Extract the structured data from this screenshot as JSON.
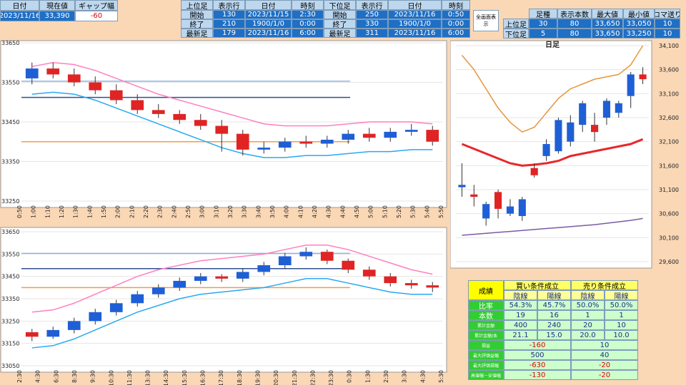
{
  "quote": {
    "headers": [
      "日付",
      "現在値",
      "ギャップ幅"
    ],
    "values": [
      "2023/11/16",
      "33,390",
      "-60"
    ]
  },
  "upper": {
    "headers": [
      "上位足",
      "表示行",
      "日付",
      "時刻"
    ],
    "rows": [
      [
        "開始",
        "130",
        "2023/11/15",
        "2:30"
      ],
      [
        "終了",
        "210",
        "1900/1/0",
        "0:00"
      ],
      [
        "最新足",
        "179",
        "2023/11/16",
        "6:00"
      ]
    ]
  },
  "lower": {
    "headers": [
      "下位足",
      "表示行",
      "日付",
      "時刻"
    ],
    "rows": [
      [
        "開始",
        "250",
        "2023/11/16",
        "0:50"
      ],
      [
        "終了",
        "330",
        "1900/1/0",
        "0:00"
      ],
      [
        "最新足",
        "311",
        "2023/11/16",
        "6:00"
      ]
    ]
  },
  "button": "全画面表示",
  "settings": {
    "headers": [
      "足種",
      "表示本数",
      "最大値",
      "最小値",
      "コマ送り"
    ],
    "rows": [
      [
        "上位足",
        "30",
        "80",
        "33,650",
        "33,050",
        "10"
      ],
      [
        "下位足",
        "5",
        "80",
        "33,650",
        "33,250",
        "10"
      ]
    ]
  },
  "stats": {
    "title": "成績",
    "groups": [
      "買い条件成立",
      "売り条件成立"
    ],
    "subheader": [
      "陰線",
      "陽線",
      "陰線",
      "陽線"
    ],
    "rows": [
      [
        "比率",
        "54.3%",
        "45.7%",
        "50.0%",
        "50.0%"
      ],
      [
        "本数",
        "19",
        "16",
        "1",
        "1"
      ],
      [
        "累計金額",
        "400",
        "240",
        "20",
        "10"
      ],
      [
        "累計金額/本",
        "21.1",
        "15.0",
        "20.0",
        "10.0"
      ],
      [
        "損益",
        "-160",
        "10"
      ],
      [
        "最大評価益幅",
        "500",
        "40"
      ],
      [
        "最大評価損幅",
        "-630",
        "-20"
      ],
      [
        "高値幅－安値幅",
        "-130",
        "-20"
      ]
    ]
  },
  "chart_data": [
    {
      "type": "candlestick",
      "ylim": [
        33250,
        33650
      ],
      "yticks": [
        33650,
        33550,
        33450,
        33350,
        33250
      ],
      "x_labels": [
        "0:50",
        "1:00",
        "1:10",
        "1:20",
        "1:30",
        "1:40",
        "1:50",
        "2:00",
        "2:10",
        "2:20",
        "2:30",
        "2:40",
        "2:50",
        "3:00",
        "3:10",
        "3:20",
        "3:30",
        "3:40",
        "3:50",
        "4:00",
        "4:10",
        "4:20",
        "4:30",
        "4:40",
        "4:50",
        "5:00",
        "5:10",
        "5:20",
        "5:30",
        "5:40",
        "5:50"
      ],
      "open": [
        33560,
        33585,
        33570,
        33550,
        33530,
        33505,
        33480,
        33470,
        33455,
        33440,
        33420,
        33380,
        33385,
        33400,
        33395,
        33405,
        33420,
        33410,
        33425,
        33430
      ],
      "close": [
        33585,
        33570,
        33550,
        33530,
        33505,
        33480,
        33470,
        33455,
        33440,
        33420,
        33380,
        33385,
        33400,
        33395,
        33405,
        33420,
        33410,
        33425,
        33430,
        33400
      ],
      "high": [
        33600,
        33600,
        33585,
        33565,
        33545,
        33520,
        33495,
        33480,
        33470,
        33455,
        33430,
        33400,
        33410,
        33415,
        33415,
        33430,
        33435,
        33435,
        33445,
        33440
      ],
      "low": [
        33545,
        33560,
        33540,
        33520,
        33495,
        33470,
        33460,
        33445,
        33430,
        33375,
        33365,
        33370,
        33375,
        33385,
        33385,
        33395,
        33400,
        33400,
        33415,
        33390
      ],
      "hlines": [
        {
          "value": 33553,
          "color": "#8fb4e3"
        },
        {
          "value": 33512,
          "color": "#2f4f8f"
        },
        {
          "value": 33400,
          "color": "#f39c4a"
        }
      ],
      "lines": [
        {
          "color": "#ff7fbf",
          "values": [
            33590,
            33600,
            33595,
            33580,
            33560,
            33540,
            33520,
            33505,
            33490,
            33475,
            33460,
            33445,
            33440,
            33440,
            33440,
            33445,
            33450,
            33450,
            33450,
            33445
          ]
        },
        {
          "color": "#29a9f0",
          "values": [
            33520,
            33525,
            33520,
            33505,
            33485,
            33465,
            33445,
            33425,
            33405,
            33385,
            33370,
            33360,
            33360,
            33365,
            33365,
            33370,
            33375,
            33375,
            33380,
            33380
          ]
        }
      ]
    },
    {
      "type": "candlestick",
      "ylim": [
        33050,
        33650
      ],
      "yticks": [
        33650,
        33550,
        33450,
        33350,
        33250,
        33150,
        33050
      ],
      "x_labels": [
        "2:30",
        "4:30",
        "6:30",
        "8:30",
        "9:30",
        "10:30",
        "11:30",
        "13:30",
        "14:30",
        "15:30",
        "16:30",
        "17:30",
        "18:30",
        "19:30",
        "20:30",
        "21:30",
        "22:30",
        "23:30",
        "0:30",
        "1:30",
        "2:30",
        "3:30",
        "4:30",
        "5:30"
      ],
      "open": [
        33200,
        33180,
        33210,
        33250,
        33290,
        33330,
        33370,
        33400,
        33430,
        33450,
        33440,
        33470,
        33500,
        33540,
        33560,
        33520,
        33480,
        33450,
        33420,
        33410
      ],
      "close": [
        33180,
        33210,
        33250,
        33290,
        33330,
        33370,
        33400,
        33430,
        33450,
        33440,
        33470,
        33500,
        33540,
        33560,
        33520,
        33480,
        33450,
        33420,
        33410,
        33400
      ],
      "high": [
        33215,
        33225,
        33265,
        33305,
        33345,
        33385,
        33415,
        33445,
        33465,
        33460,
        33485,
        33515,
        33555,
        33580,
        33570,
        33530,
        33495,
        33465,
        33435,
        33425
      ],
      "low": [
        33160,
        33170,
        33195,
        33235,
        33275,
        33315,
        33355,
        33385,
        33415,
        33425,
        33425,
        33455,
        33485,
        33525,
        33505,
        33465,
        33435,
        33405,
        33395,
        33380
      ],
      "hlines": [
        {
          "value": 33553,
          "color": "#8fb4e3"
        },
        {
          "value": 33485,
          "color": "#2f4f8f"
        },
        {
          "value": 33400,
          "color": "#f39c4a"
        }
      ],
      "lines": [
        {
          "color": "#ff7fbf",
          "values": [
            33290,
            33300,
            33330,
            33370,
            33410,
            33450,
            33480,
            33500,
            33520,
            33530,
            33540,
            33550,
            33570,
            33590,
            33590,
            33570,
            33540,
            33510,
            33480,
            33460
          ]
        },
        {
          "color": "#29a9f0",
          "values": [
            33130,
            33140,
            33170,
            33210,
            33250,
            33290,
            33320,
            33350,
            33370,
            33380,
            33390,
            33400,
            33420,
            33440,
            33440,
            33420,
            33400,
            33380,
            33370,
            33370
          ]
        }
      ]
    },
    {
      "type": "candlestick",
      "title": "日足",
      "ylim": [
        29600,
        34100
      ],
      "yticks": [
        {
          "value": 34100,
          "label": "34,100"
        },
        {
          "value": 33600,
          "label": "33,600"
        },
        {
          "value": 33100,
          "label": "33,100"
        },
        {
          "value": 32600,
          "label": "32,600"
        },
        {
          "value": 32100,
          "label": "32,100"
        },
        {
          "value": 31600,
          "label": "31,600"
        },
        {
          "value": 31100,
          "label": "31,100"
        },
        {
          "value": 30600,
          "label": "30,600"
        },
        {
          "value": 30100,
          "label": "30,100"
        },
        {
          "value": 29600,
          "label": "29,600"
        }
      ],
      "open": [
        31150,
        31000,
        30500,
        31050,
        30600,
        30550,
        31550,
        31800,
        31900,
        32100,
        32450,
        32450,
        32600,
        32700,
        33050,
        33500
      ],
      "close": [
        31200,
        30950,
        30800,
        30700,
        30750,
        30900,
        31400,
        32050,
        32550,
        32500,
        32900,
        32300,
        32950,
        32900,
        33500,
        33400
      ],
      "high": [
        31650,
        31200,
        30850,
        31100,
        30900,
        30950,
        31650,
        32150,
        32600,
        32650,
        32950,
        32700,
        33000,
        32950,
        33550,
        33650
      ],
      "low": [
        30950,
        30750,
        30350,
        30500,
        30550,
        30450,
        31350,
        31700,
        31850,
        32000,
        32300,
        32100,
        32450,
        32600,
        32800,
        33300
      ],
      "hlines": [],
      "lines": [
        {
          "color": "#e8943c",
          "values": [
            33900,
            33600,
            33200,
            32800,
            32500,
            32300,
            32400,
            32700,
            33000,
            33200,
            33300,
            33400,
            33450,
            33500,
            33700,
            34100
          ]
        },
        {
          "color": "#e8272a",
          "values": [
            32050,
            31950,
            31850,
            31750,
            31650,
            31600,
            31620,
            31650,
            31700,
            31800,
            31850,
            31900,
            31950,
            32000,
            32050,
            32150
          ]
        },
        {
          "color": "#7a5aa6",
          "values": [
            30150,
            30170,
            30190,
            30210,
            30230,
            30250,
            30270,
            30290,
            30310,
            30330,
            30350,
            30370,
            30400,
            30430,
            30460,
            30500
          ]
        }
      ]
    }
  ]
}
